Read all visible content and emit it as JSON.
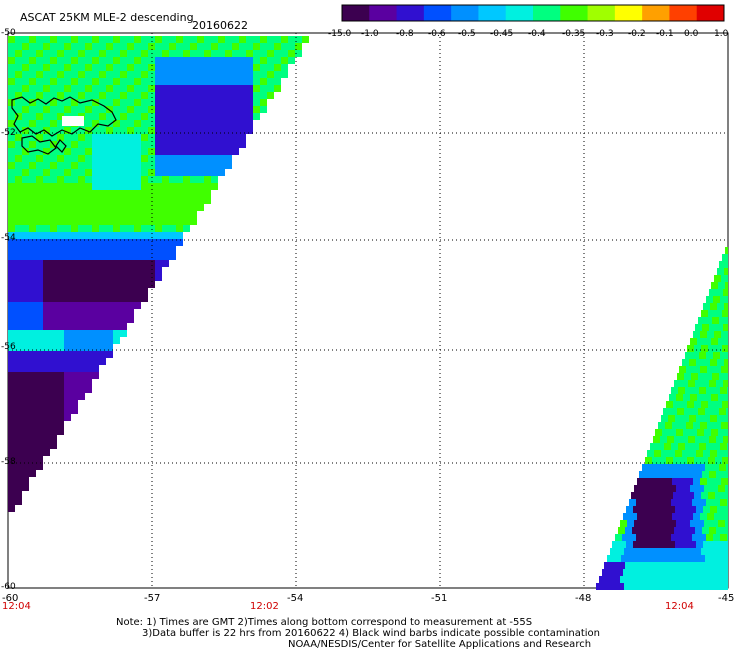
{
  "header": {
    "title": "ASCAT 25KM MLE-2 descending",
    "date": "20160622"
  },
  "colorbar": {
    "labels": [
      "-15.0",
      "-1.0",
      "-0.8",
      "-0.6",
      "-0.5",
      "-0.45",
      "-0.4",
      "-0.35",
      "-0.3",
      "-0.2",
      "-0.1",
      "0.0",
      "1.0"
    ],
    "colors": [
      "#3c0050",
      "#5a00a0",
      "#3010d0",
      "#0050ff",
      "#0090ff",
      "#00c8ff",
      "#00f0e0",
      "#00ff80",
      "#40ff00",
      "#a0ff00",
      "#ffff00",
      "#ffa000",
      "#ff4000",
      "#e00000"
    ]
  },
  "axes": {
    "lat_labels": [
      "-50",
      "-52",
      "-54",
      "-56",
      "-58",
      "-60"
    ],
    "lon_labels": [
      "-60",
      "-57",
      "-54",
      "-51",
      "-48",
      "-45"
    ]
  },
  "time_labels": [
    "12:04",
    "12:02",
    "12:04"
  ],
  "notes": {
    "line1": "Note: 1) Times are GMT 2)Times along bottom correspond to measurement at -55S",
    "line2": "3)Data buffer is 22 hrs from 20160622 4) Black wind barbs indicate possible contamination",
    "line3": "NOAA/NESDIS/Center for Satellite Applications and Research"
  }
}
